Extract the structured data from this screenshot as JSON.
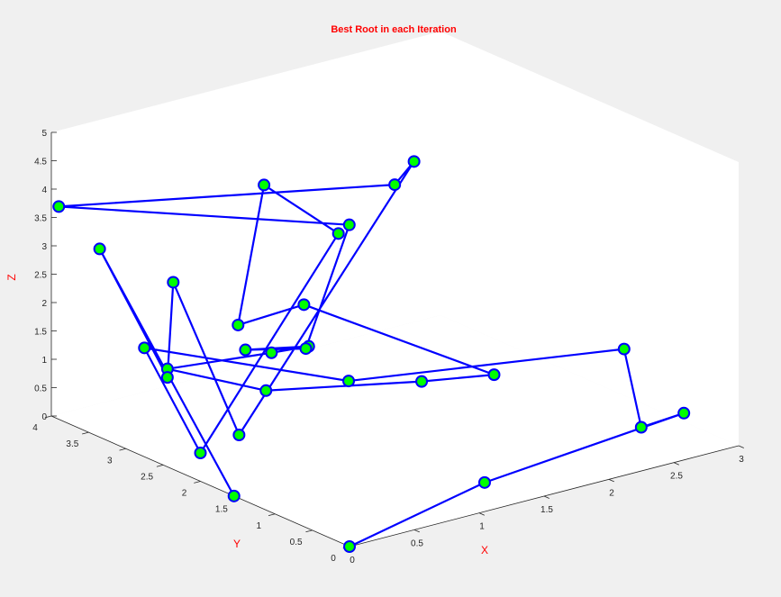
{
  "chart_data": {
    "type": "line3d",
    "title": "Best Root in each Iteration",
    "xlabel": "X",
    "ylabel": "Y",
    "zlabel": "Z",
    "xlim": [
      0,
      3
    ],
    "ylim": [
      0,
      4
    ],
    "zlim": [
      0,
      5
    ],
    "xticks": [
      "0",
      "0.5",
      "1",
      "1.5",
      "2",
      "2.5",
      "3"
    ],
    "yticks": [
      "0",
      "0.5",
      "1",
      "1.5",
      "2",
      "2.5",
      "3",
      "3.5",
      "4"
    ],
    "zticks": [
      "0",
      "0.5",
      "1",
      "1.5",
      "2",
      "2.5",
      "3",
      "3.5",
      "4",
      "4.5",
      "5"
    ],
    "grid": false,
    "colors": {
      "line": "#0000ff",
      "marker_fill": "#00ff00",
      "marker_edge": "#0000ff",
      "label": "#ff0000",
      "background": "#f0f0f0",
      "pane": "#ffffff"
    },
    "points": [
      {
        "x": 0.0,
        "y": 0.0,
        "z": 0.0
      },
      {
        "x": 1.3,
        "y": 0.45,
        "z": 0.1
      },
      {
        "x": 2.75,
        "y": 0.3,
        "z": 0.55
      },
      {
        "x": 2.45,
        "y": 0.35,
        "z": 0.45
      },
      {
        "x": 2.95,
        "y": 1.45,
        "z": 0.9
      },
      {
        "x": 1.2,
        "y": 2.1,
        "z": 1.0
      },
      {
        "x": 0.2,
        "y": 3.1,
        "z": 1.6
      },
      {
        "x": 0.0,
        "y": 2.0,
        "z": 0.5
      },
      {
        "x": 1.15,
        "y": 2.15,
        "z": 3.6
      },
      {
        "x": 0.95,
        "y": 2.8,
        "z": 4.2
      },
      {
        "x": 0.75,
        "y": 2.8,
        "z": 1.85
      },
      {
        "x": 1.2,
        "y": 2.7,
        "z": 2.0
      },
      {
        "x": 2.35,
        "y": 2.15,
        "z": 0.4
      },
      {
        "x": 2.05,
        "y": 2.6,
        "z": 0.2
      },
      {
        "x": 0.85,
        "y": 2.6,
        "z": 0.75
      },
      {
        "x": 0.55,
        "y": 3.4,
        "z": 0.85
      },
      {
        "x": 0.95,
        "y": 2.7,
        "z": 1.3
      },
      {
        "x": 0.95,
        "y": 2.2,
        "z": 1.7
      },
      {
        "x": 0.95,
        "y": 3.05,
        "z": 1.15
      },
      {
        "x": 1.1,
        "y": 2.5,
        "z": 1.4
      },
      {
        "x": 1.55,
        "y": 2.7,
        "z": 3.2
      },
      {
        "x": 0.0,
        "y": 3.9,
        "z": 3.75
      },
      {
        "x": 1.9,
        "y": 2.7,
        "z": 3.7
      },
      {
        "x": 2.25,
        "y": 3.05,
        "z": 3.7
      },
      {
        "x": 0.7,
        "y": 2.7,
        "z": 0.0
      },
      {
        "x": 0.25,
        "y": 2.8,
        "z": 2.9
      },
      {
        "x": 0.55,
        "y": 3.4,
        "z": 0.7
      },
      {
        "x": 0.2,
        "y": 3.7,
        "z": 3.0
      },
      {
        "x": 0.0,
        "y": 1.55,
        "z": 0.0
      }
    ]
  }
}
